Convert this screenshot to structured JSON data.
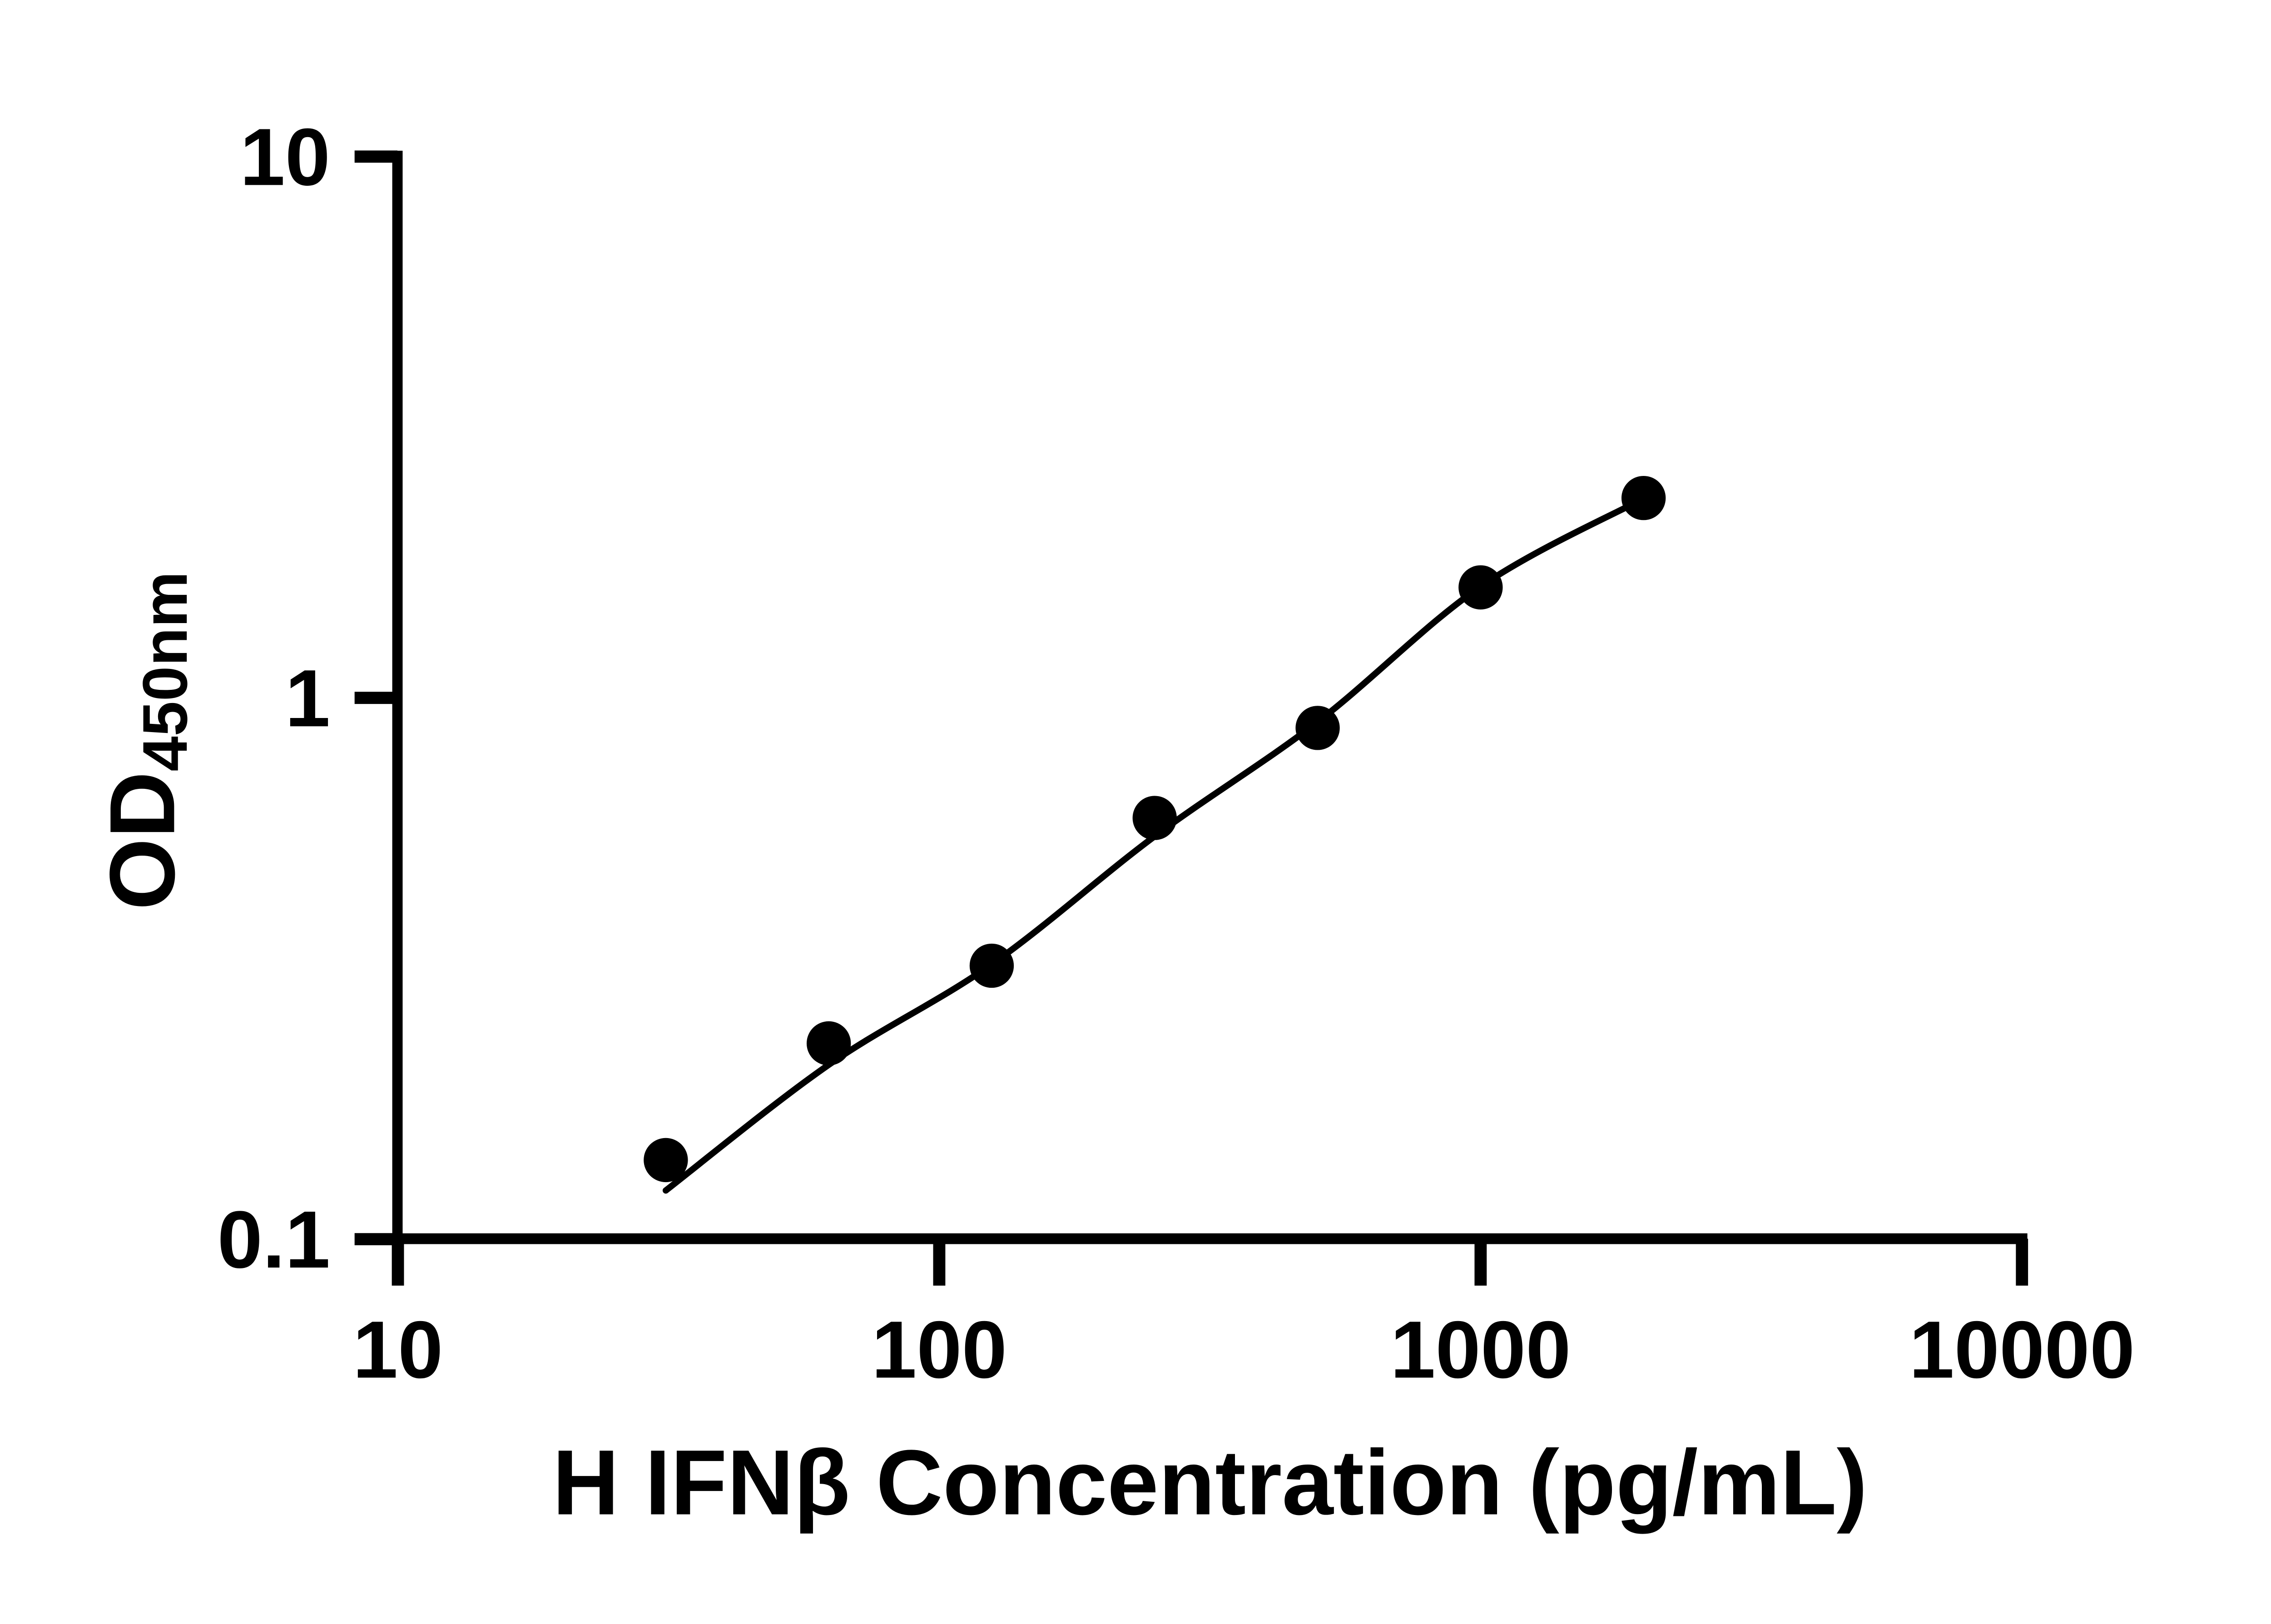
{
  "page": {
    "background_color": "#ffffff",
    "foreground_color": "#000000"
  },
  "chart_data": {
    "type": "scatter",
    "title": "",
    "xlabel": "H IFNβ Concentration (pg/mL)",
    "ylabel": "OD450nm",
    "ylabel_main": "OD",
    "ylabel_sub": "450nm",
    "x_scale": "log10",
    "y_scale": "log10",
    "xlim": [
      10,
      10000
    ],
    "ylim": [
      0.1,
      10
    ],
    "grid": "off",
    "legend": "none",
    "marker_color": "#000000",
    "line_color": "#000000",
    "x_ticks": [
      {
        "value": 10,
        "label": "10"
      },
      {
        "value": 100,
        "label": "100"
      },
      {
        "value": 1000,
        "label": "1000"
      },
      {
        "value": 10000,
        "label": "10000"
      }
    ],
    "y_ticks": [
      {
        "value": 10,
        "label": "10"
      },
      {
        "value": 1,
        "label": "1"
      },
      {
        "value": 0.1,
        "label": "0.1"
      }
    ],
    "series": [
      {
        "name": "standard-points",
        "style": "filled-circle-markers",
        "x": [
          31.25,
          62.5,
          125,
          250,
          500,
          1000,
          2000
        ],
        "y": [
          0.14,
          0.23,
          0.32,
          0.6,
          0.88,
          1.6,
          2.34
        ]
      },
      {
        "name": "fitted-curve",
        "style": "smooth-line",
        "x": [
          31.25,
          62.5,
          125,
          250,
          500,
          1000,
          2000
        ],
        "y": [
          0.123,
          0.21,
          0.322,
          0.555,
          0.903,
          1.606,
          2.335
        ]
      }
    ]
  }
}
